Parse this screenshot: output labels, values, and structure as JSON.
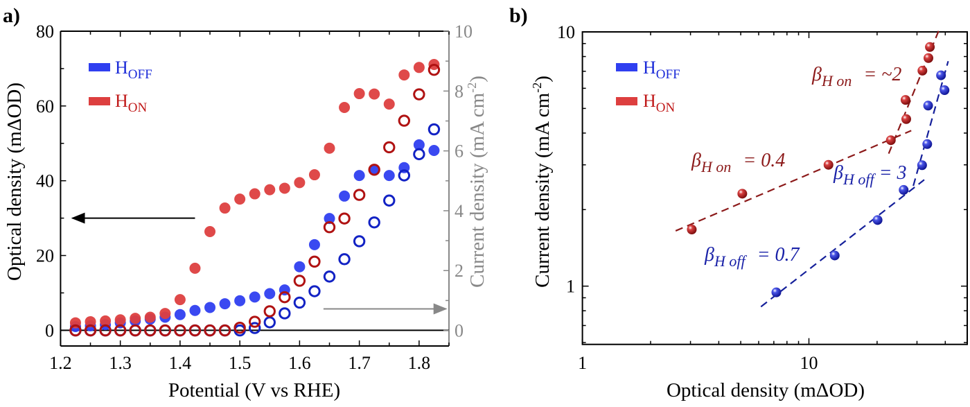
{
  "colors": {
    "hoff_fill": "#2f3ff0",
    "hon_fill": "#dd3f3f",
    "hoff_open": "#1222c4",
    "hon_open": "#b01212",
    "hoff_ball": "#1c26c8",
    "hon_ball": "#b81c1c",
    "hoff_fit": "#15209a",
    "hon_fit": "#8c1a1a",
    "right_axis": "#888888"
  },
  "chart_data": [
    {
      "panel_label": "a)",
      "type": "scatter",
      "xlabel": "Potential (V vs RHE)",
      "ylabel": "Optical density (mΔOD)",
      "y2label_main": "Current density (mA cm",
      "y2label_sup": "-2",
      "y2label_end": ")",
      "xlim": [
        1.2,
        1.85
      ],
      "ylim": [
        -4.2,
        80
      ],
      "y2lim": [
        -0.52,
        10
      ],
      "xticks": [
        "1.2",
        "1.3",
        "1.4",
        "1.5",
        "1.6",
        "1.7",
        "1.8"
      ],
      "yticks": [
        "0",
        "20",
        "40",
        "60",
        "80"
      ],
      "y2ticks": [
        "0",
        "2",
        "4",
        "6",
        "8",
        "10"
      ],
      "legend": {
        "placement": "top-left",
        "items": [
          {
            "main": "H",
            "sub": "OFF"
          },
          {
            "main": "H",
            "sub": "ON"
          }
        ]
      },
      "x": [
        1.225,
        1.25,
        1.275,
        1.3,
        1.325,
        1.35,
        1.375,
        1.4,
        1.425,
        1.45,
        1.475,
        1.5,
        1.525,
        1.55,
        1.575,
        1.6,
        1.625,
        1.65,
        1.675,
        1.7,
        1.725,
        1.75,
        1.775,
        1.8,
        1.825
      ],
      "series": [
        {
          "name": "H_OFF optical density",
          "axis": "left",
          "marker": "filled",
          "values": [
            1.0,
            1.2,
            1.5,
            2.0,
            2.5,
            3.0,
            3.5,
            4.2,
            5.3,
            6.1,
            7.1,
            7.9,
            8.9,
            9.8,
            10.8,
            17.0,
            22.9,
            29.9,
            35.9,
            41.4,
            43.0,
            41.4,
            43.5,
            49.6,
            48.1
          ]
        },
        {
          "name": "H_ON optical density",
          "axis": "left",
          "marker": "filled",
          "values": [
            2.0,
            2.3,
            2.5,
            2.8,
            3.2,
            3.5,
            4.5,
            8.2,
            16.6,
            26.4,
            32.7,
            35.1,
            36.5,
            37.6,
            38.0,
            39.5,
            41.6,
            48.7,
            59.6,
            63.3,
            63.2,
            60.5,
            68.3,
            70.3,
            71.1
          ]
        },
        {
          "name": "H_OFF current density",
          "axis": "right",
          "marker": "open",
          "values": [
            0,
            0,
            0,
            0,
            0,
            0,
            0,
            0,
            0,
            0,
            0,
            0,
            0.08,
            0.27,
            0.57,
            0.93,
            1.31,
            1.8,
            2.38,
            2.98,
            3.61,
            4.34,
            5.18,
            5.89,
            6.72
          ]
        },
        {
          "name": "H_ON current density",
          "axis": "right",
          "marker": "open",
          "values": [
            0,
            0,
            0,
            0,
            0,
            0,
            0,
            0,
            0,
            0,
            0,
            0.09,
            0.29,
            0.64,
            1.11,
            1.66,
            2.3,
            3.45,
            3.74,
            4.53,
            5.37,
            6.12,
            7.01,
            7.89,
            8.71
          ]
        }
      ],
      "arrows": [
        {
          "direction": "left",
          "points_to": "left axis",
          "at_y": 30,
          "from_x": 1.425,
          "to_x": 1.22
        },
        {
          "direction": "right",
          "points_to": "right axis",
          "at_y2": 0.72,
          "from_x": 1.64,
          "to_x": 1.845
        }
      ]
    },
    {
      "panel_label": "b)",
      "type": "scatter",
      "scale": "log-log",
      "xlabel": "Optical density (mΔOD)",
      "ylabel_main": "Current density (mA cm",
      "ylabel_sup": "-2",
      "ylabel_end": ")",
      "xlim": [
        1,
        50
      ],
      "ylim": [
        0.59,
        10
      ],
      "xticks": [
        "1",
        "10"
      ],
      "yticks": [
        "1",
        "10"
      ],
      "legend": {
        "placement": "top-left",
        "items": [
          {
            "main": "H",
            "sub": "OFF"
          },
          {
            "main": "H",
            "sub": "ON"
          }
        ]
      },
      "series": [
        {
          "name": "H_OFF",
          "x": [
            7.18,
            13.0,
            20.1,
            26.2,
            31.6,
            33.3,
            33.6,
            39.7,
            38.3
          ],
          "y": [
            0.945,
            1.32,
            1.82,
            2.39,
            2.99,
            3.62,
            5.13,
            5.9,
            6.75
          ]
        },
        {
          "name": "H_ON",
          "x": [
            3.04,
            5.08,
            12.2,
            23.0,
            26.9,
            26.7,
            31.7,
            33.7,
            34.2
          ],
          "y": [
            1.67,
            2.31,
            3.0,
            3.75,
            4.54,
            5.4,
            7.04,
            7.89,
            8.72
          ]
        }
      ],
      "fits": [
        {
          "series": "H_ON",
          "x": [
            2.58,
            28.3
          ],
          "y": [
            1.65,
            4.09
          ]
        },
        {
          "series": "H_ON",
          "x": [
            22.5,
            37.4
          ],
          "y": [
            3.32,
            10.1
          ]
        },
        {
          "series": "H_OFF",
          "x": [
            6.14,
            32.3
          ],
          "y": [
            0.83,
            2.62
          ]
        },
        {
          "series": "H_OFF",
          "x": [
            28.9,
            41.2
          ],
          "y": [
            2.48,
            7.67
          ]
        }
      ],
      "annotations": [
        {
          "sym": "β",
          "sub": "H on",
          "rest": " = ~2",
          "series": "H_ON"
        },
        {
          "sym": "β",
          "sub": "H on",
          "rest": " = 0.4",
          "series": "H_ON"
        },
        {
          "sym": "β",
          "sub": "H off",
          "rest": " = 3",
          "series": "H_OFF"
        },
        {
          "sym": "β",
          "sub": "H off",
          "rest": " = 0.7",
          "series": "H_OFF"
        }
      ]
    }
  ]
}
